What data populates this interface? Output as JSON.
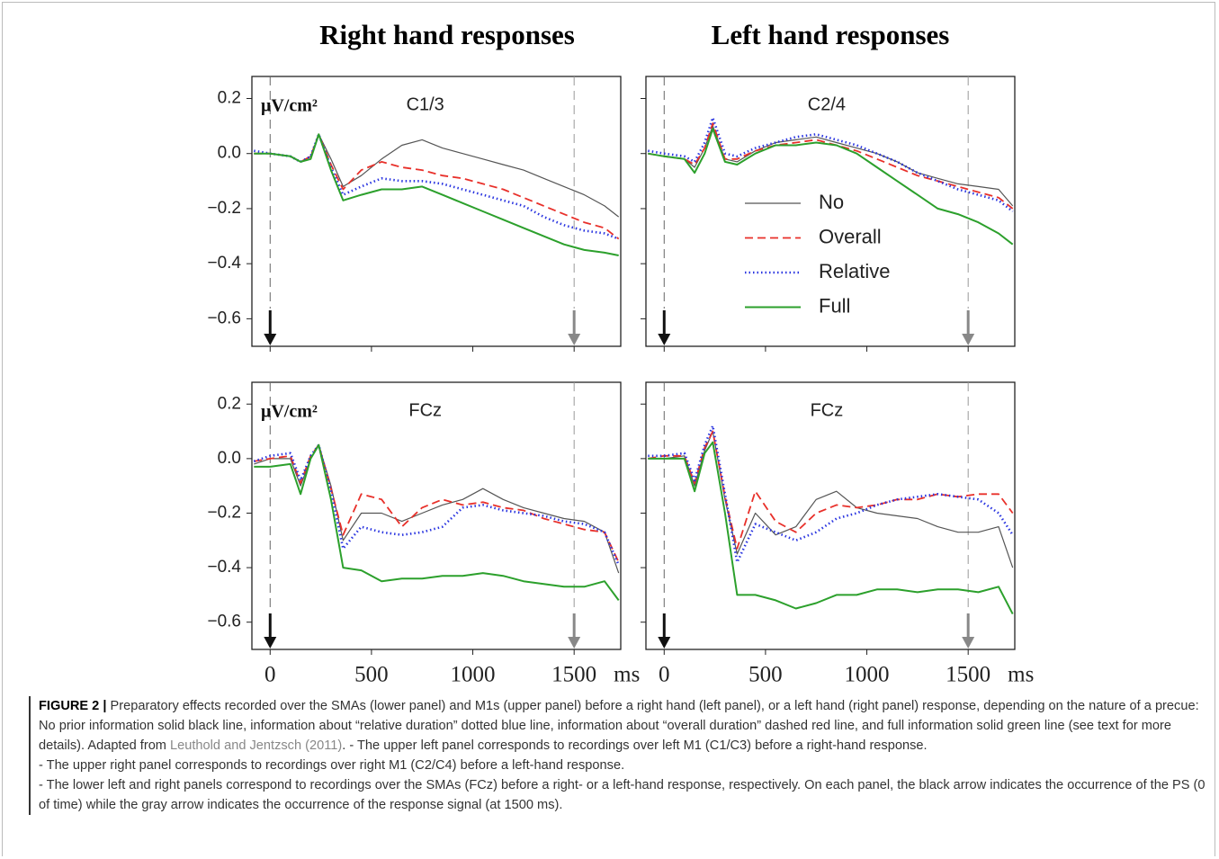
{
  "column_titles": [
    "Right hand responses",
    "Left hand responses"
  ],
  "chart_data": [
    {
      "type": "line",
      "label": "C1/3",
      "y_unit": "μV/cm²",
      "xlim": [
        -90,
        1730
      ],
      "ylim": [
        -0.7,
        0.28
      ],
      "yticks": [
        0.2,
        {
          "value": 0,
          "label": "0.0"
        },
        {
          "value": -0.2,
          "label": "−0.2"
        },
        {
          "value": -0.4,
          "label": "−0.4"
        },
        {
          "value": -0.6,
          "label": "−0.6"
        }
      ],
      "x": [
        -80,
        0,
        100,
        150,
        200,
        240,
        300,
        360,
        450,
        550,
        650,
        750,
        850,
        950,
        1050,
        1150,
        1250,
        1350,
        1450,
        1550,
        1650,
        1720
      ],
      "series": [
        {
          "color": "#555555",
          "values": [
            0,
            0,
            -0.01,
            -0.03,
            -0.01,
            0.07,
            -0.02,
            -0.12,
            -0.08,
            -0.02,
            0.03,
            0.05,
            0.02,
            0,
            -0.02,
            -0.04,
            -0.06,
            -0.09,
            -0.12,
            -0.15,
            -0.19,
            -0.23
          ]
        },
        {
          "color": "#e8302a",
          "values": [
            0,
            0,
            -0.01,
            -0.03,
            -0.01,
            0.07,
            -0.04,
            -0.13,
            -0.06,
            -0.03,
            -0.05,
            -0.06,
            -0.08,
            -0.09,
            -0.11,
            -0.13,
            -0.16,
            -0.19,
            -0.22,
            -0.25,
            -0.27,
            -0.31
          ]
        },
        {
          "color": "#2a35e0",
          "values": [
            0.01,
            0,
            -0.01,
            -0.03,
            -0.01,
            0.07,
            -0.05,
            -0.15,
            -0.12,
            -0.09,
            -0.1,
            -0.1,
            -0.11,
            -0.13,
            -0.15,
            -0.17,
            -0.19,
            -0.23,
            -0.26,
            -0.28,
            -0.29,
            -0.31
          ]
        },
        {
          "color": "#2ca02c",
          "values": [
            0,
            0,
            -0.01,
            -0.03,
            -0.02,
            0.07,
            -0.06,
            -0.17,
            -0.15,
            -0.13,
            -0.13,
            -0.12,
            -0.15,
            -0.18,
            -0.21,
            -0.24,
            -0.27,
            -0.3,
            -0.33,
            -0.35,
            -0.36,
            -0.37
          ]
        }
      ]
    },
    {
      "type": "line",
      "label": "C2/4",
      "xlim": [
        -90,
        1730
      ],
      "ylim": [
        -0.7,
        0.28
      ],
      "legend": true,
      "x": [
        -80,
        0,
        100,
        150,
        200,
        240,
        300,
        360,
        450,
        550,
        650,
        750,
        850,
        950,
        1050,
        1150,
        1250,
        1350,
        1450,
        1550,
        1650,
        1720
      ],
      "series": [
        {
          "name": "No",
          "color": "#555555",
          "values": [
            0,
            -0.01,
            -0.02,
            -0.05,
            0.02,
            0.1,
            -0.02,
            -0.03,
            0.01,
            0.04,
            0.05,
            0.06,
            0.04,
            0.02,
            0,
            -0.03,
            -0.07,
            -0.09,
            -0.11,
            -0.12,
            -0.13,
            -0.19
          ]
        },
        {
          "name": "Overall",
          "color": "#e8302a",
          "values": [
            0,
            -0.01,
            -0.02,
            -0.04,
            0.02,
            0.11,
            -0.02,
            -0.02,
            0.01,
            0.03,
            0.04,
            0.05,
            0.03,
            0.01,
            -0.02,
            -0.05,
            -0.08,
            -0.1,
            -0.12,
            -0.14,
            -0.16,
            -0.2
          ]
        },
        {
          "name": "Relative",
          "color": "#2a35e0",
          "values": [
            0.01,
            0,
            -0.01,
            -0.03,
            0.04,
            0.13,
            0,
            -0.01,
            0.02,
            0.04,
            0.06,
            0.07,
            0.05,
            0.03,
            0,
            -0.03,
            -0.07,
            -0.1,
            -0.13,
            -0.15,
            -0.17,
            -0.21
          ]
        },
        {
          "name": "Full",
          "color": "#2ca02c",
          "values": [
            0,
            -0.01,
            -0.02,
            -0.07,
            0,
            0.09,
            -0.03,
            -0.04,
            0,
            0.03,
            0.03,
            0.04,
            0.03,
            0,
            -0.05,
            -0.1,
            -0.15,
            -0.2,
            -0.22,
            -0.25,
            -0.29,
            -0.33
          ]
        }
      ]
    },
    {
      "type": "line",
      "label": "FCz",
      "y_unit": "μV/cm²",
      "xlim": [
        -90,
        1730
      ],
      "ylim": [
        -0.7,
        0.28
      ],
      "yticks": [
        0.2,
        {
          "value": 0,
          "label": "0.0"
        },
        {
          "value": -0.2,
          "label": "−0.2"
        },
        {
          "value": -0.4,
          "label": "−0.4"
        },
        {
          "value": -0.6,
          "label": "−0.6"
        }
      ],
      "xticks": [
        0,
        500,
        1000,
        1500
      ],
      "xlabel": "ms",
      "x": [
        -80,
        0,
        100,
        150,
        200,
        240,
        300,
        360,
        450,
        550,
        650,
        750,
        850,
        950,
        1050,
        1150,
        1250,
        1350,
        1450,
        1550,
        1650,
        1720
      ],
      "series": [
        {
          "color": "#555555",
          "values": [
            -0.02,
            0,
            0,
            -0.1,
            0,
            0.05,
            -0.1,
            -0.3,
            -0.2,
            -0.2,
            -0.23,
            -0.2,
            -0.17,
            -0.15,
            -0.11,
            -0.15,
            -0.18,
            -0.2,
            -0.22,
            -0.23,
            -0.27,
            -0.42
          ]
        },
        {
          "color": "#e8302a",
          "values": [
            -0.01,
            0,
            0.01,
            -0.09,
            0.01,
            0.05,
            -0.11,
            -0.28,
            -0.13,
            -0.15,
            -0.25,
            -0.18,
            -0.15,
            -0.17,
            -0.16,
            -0.18,
            -0.19,
            -0.22,
            -0.24,
            -0.26,
            -0.27,
            -0.38
          ]
        },
        {
          "color": "#2a35e0",
          "values": [
            -0.01,
            0.01,
            0.02,
            -0.08,
            0.01,
            0.05,
            -0.12,
            -0.33,
            -0.25,
            -0.27,
            -0.28,
            -0.27,
            -0.25,
            -0.18,
            -0.17,
            -0.19,
            -0.2,
            -0.21,
            -0.23,
            -0.24,
            -0.27,
            -0.39
          ]
        },
        {
          "color": "#2ca02c",
          "values": [
            -0.03,
            -0.03,
            -0.02,
            -0.13,
            0,
            0.05,
            -0.15,
            -0.4,
            -0.41,
            -0.45,
            -0.44,
            -0.44,
            -0.43,
            -0.43,
            -0.42,
            -0.43,
            -0.45,
            -0.46,
            -0.47,
            -0.47,
            -0.45,
            -0.52
          ]
        }
      ]
    },
    {
      "type": "line",
      "label": "FCz",
      "xlim": [
        -90,
        1730
      ],
      "ylim": [
        -0.7,
        0.28
      ],
      "xticks": [
        0,
        500,
        1000,
        1500
      ],
      "xlabel": "ms",
      "x": [
        -80,
        0,
        100,
        150,
        200,
        240,
        300,
        360,
        450,
        550,
        650,
        750,
        850,
        950,
        1050,
        1150,
        1250,
        1350,
        1450,
        1550,
        1650,
        1720
      ],
      "series": [
        {
          "color": "#555555",
          "values": [
            0,
            0,
            0.01,
            -0.1,
            0.03,
            0.1,
            -0.15,
            -0.35,
            -0.2,
            -0.28,
            -0.25,
            -0.15,
            -0.12,
            -0.18,
            -0.2,
            -0.21,
            -0.22,
            -0.25,
            -0.27,
            -0.27,
            -0.25,
            -0.4
          ]
        },
        {
          "color": "#e8302a",
          "values": [
            0,
            0.01,
            0.01,
            -0.09,
            0.04,
            0.1,
            -0.14,
            -0.33,
            -0.12,
            -0.23,
            -0.27,
            -0.2,
            -0.17,
            -0.18,
            -0.17,
            -0.15,
            -0.15,
            -0.13,
            -0.14,
            -0.13,
            -0.13,
            -0.2
          ]
        },
        {
          "color": "#2a35e0",
          "values": [
            0.01,
            0.01,
            0.02,
            -0.08,
            0.05,
            0.12,
            -0.13,
            -0.38,
            -0.24,
            -0.27,
            -0.3,
            -0.27,
            -0.22,
            -0.2,
            -0.17,
            -0.15,
            -0.14,
            -0.13,
            -0.14,
            -0.15,
            -0.2,
            -0.28
          ]
        },
        {
          "color": "#2ca02c",
          "values": [
            0,
            0,
            0,
            -0.12,
            0.02,
            0.06,
            -0.2,
            -0.5,
            -0.5,
            -0.52,
            -0.55,
            -0.53,
            -0.5,
            -0.5,
            -0.48,
            -0.48,
            -0.49,
            -0.48,
            -0.48,
            -0.49,
            -0.47,
            -0.57
          ]
        }
      ]
    }
  ],
  "caption": {
    "label": "FIGURE 2 |",
    "text_1": "Preparatory effects recorded over the SMAs (lower panel) and M1s (upper panel) before a right hand (left panel), or a left hand (right panel) response, depending on the nature of a precue: No prior information solid black line, information about “relative duration” dotted blue line, information about “overall duration” dashed red line, and full information solid green line (see text for more details). Adapted from",
    "link": "Leuthold and Jentzsch (2011)",
    "text_2": ". - The upper left panel corresponds to recordings over left M1 (C1/C3) before a right-hand response.",
    "text_3": "- The upper right panel corresponds to recordings over right M1 (C2/C4) before a left-hand response.",
    "text_4": "- The lower left and right panels correspond to recordings over the SMAs (FCz) before a right- or a left-hand response, respectively. On each panel, the black arrow indicates the occurrence of the PS (0 of time) while the gray arrow indicates the occurrence of the response signal (at 1500 ms)."
  }
}
